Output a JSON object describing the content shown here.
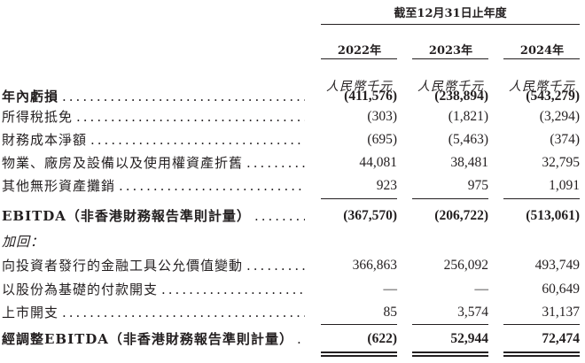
{
  "header": {
    "period": "截至12月31日止年度",
    "years": [
      "2022年",
      "2023年",
      "2024年"
    ],
    "units": [
      "人民幣千元",
      "人民幣千元",
      "人民幣千元"
    ]
  },
  "rows": [
    {
      "label": "年內虧損",
      "values": [
        "(411,576)",
        "(238,894)",
        "(543,279)"
      ],
      "bold": true
    },
    {
      "label": "所得稅抵免",
      "values": [
        "(303)",
        "(1,821)",
        "(3,294)"
      ]
    },
    {
      "label": "財務成本淨額",
      "values": [
        "(695)",
        "(5,463)",
        "(374)"
      ]
    },
    {
      "label": "物業、廠房及設備以及使用權資產折舊",
      "values": [
        "44,081",
        "38,481",
        "32,795"
      ]
    },
    {
      "label": "其他無形資產攤銷",
      "values": [
        "923",
        "975",
        "1,091"
      ]
    },
    {
      "label": "EBITDA（非香港財務報告準則計量）",
      "values": [
        "(367,570)",
        "(206,722)",
        "(513,061)"
      ],
      "bold": true
    },
    {
      "label": "加回：",
      "values": [
        "",
        "",
        ""
      ],
      "italic": true
    },
    {
      "label": "向投資者發行的金融工具公允價值變動",
      "values": [
        "366,863",
        "256,092",
        "493,749"
      ]
    },
    {
      "label": "以股份為基礎的付款開支",
      "values": [
        "—",
        "—",
        "60,649"
      ]
    },
    {
      "label": "上市開支",
      "values": [
        "85",
        "3,574",
        "31,137"
      ]
    },
    {
      "label": "經調整EBITDA（非香港財務報告準則計量）",
      "values": [
        "(622)",
        "52,944",
        "72,474"
      ],
      "bold": true
    }
  ]
}
